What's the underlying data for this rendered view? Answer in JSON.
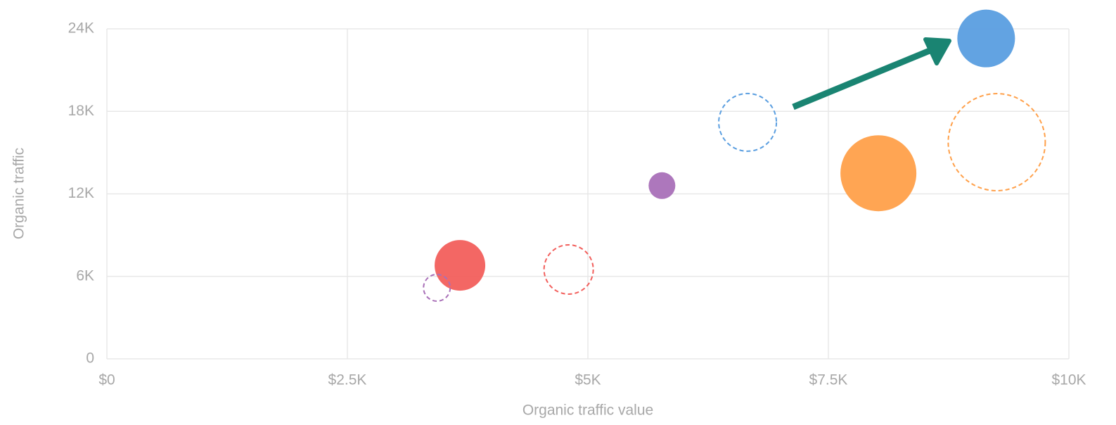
{
  "chart_data": {
    "type": "bubble",
    "x_label": "Organic traffic value",
    "y_label": "Organic traffic",
    "xlim": [
      0,
      10000
    ],
    "xticks": [
      {
        "value": 0,
        "label": "$0"
      },
      {
        "value": 2500,
        "label": "$2.5K"
      },
      {
        "value": 5000,
        "label": "$5K"
      },
      {
        "value": 7500,
        "label": "$7.5K"
      },
      {
        "value": 10000,
        "label": "$10K"
      }
    ],
    "ylim": [
      0,
      24000
    ],
    "yticks": [
      0,
      {
        "value": 6000,
        "label": "6K"
      },
      {
        "value": 12000,
        "label": "12K"
      },
      {
        "value": 18000,
        "label": "18K"
      },
      {
        "value": 24000,
        "label": "24K"
      }
    ],
    "grid": true,
    "series": [
      {
        "style": "solid",
        "colors": [
          "#5a9ee0",
          "#ffa04a",
          "#a970b8",
          "#f25f5c"
        ],
        "x": [
          9140,
          8020,
          5770,
          3670
        ],
        "values": [
          23300,
          13500,
          12600,
          6800
        ],
        "sizes": [
          41,
          54,
          19,
          36
        ]
      },
      {
        "style": "dashed",
        "colors": [
          "#5a9ee0",
          "#ffa04a",
          "#a970b8",
          "#f25f5c"
        ],
        "x": [
          6660,
          9250,
          3430,
          4800
        ],
        "values": [
          17200,
          15760,
          5170,
          6500
        ],
        "sizes": [
          41,
          69,
          19,
          35
        ]
      }
    ]
  }
}
